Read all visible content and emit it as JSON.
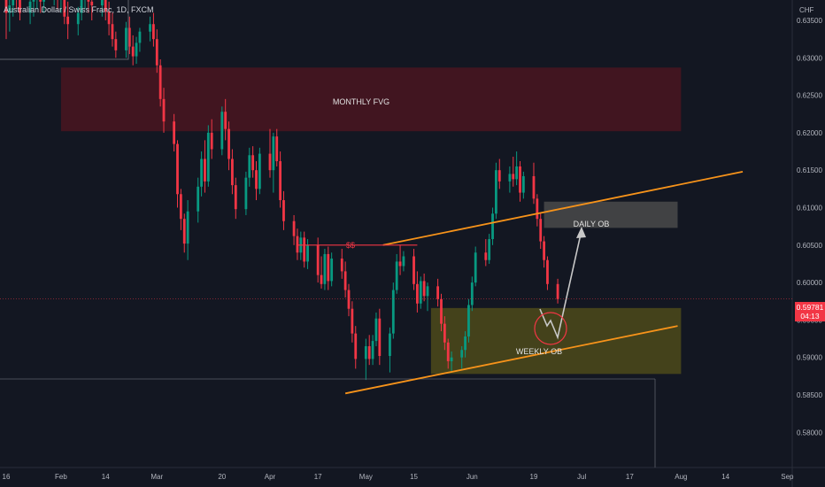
{
  "header": {
    "title": "Australian Dollar / Swiss Franc, 1D, FXCM"
  },
  "price_axis": {
    "currency": "CHF",
    "last_price": "0.59781",
    "countdown": "04:13"
  },
  "colors": {
    "background": "#131722",
    "up_candle": "#089981",
    "down_candle": "#f23645",
    "trendline": "#f7931a",
    "monthly_fvg_fill": "#4a1520",
    "weekly_ob_fill": "#4d4a1a",
    "daily_ob_fill": "#4a4a4a",
    "projection_arrow": "#c8c8c8"
  },
  "annotations": {
    "monthly_fvg": "MONTHLY FVG",
    "daily_ob": "DAILY OB",
    "weekly_ob": "WEEKLY OB",
    "liquidity": "$$"
  },
  "chart_data": {
    "type": "candlestick",
    "symbol": "Australian Dollar / Swiss Franc",
    "timeframe": "1D",
    "source": "FXCM",
    "currency": "CHF",
    "ylim": [
      0.5775,
      0.6375
    ],
    "y_ticks": [
      "0.63500",
      "0.63000",
      "0.62500",
      "0.62000",
      "0.61500",
      "0.61000",
      "0.60500",
      "0.60000",
      "0.59500",
      "0.59000",
      "0.58500",
      "0.58000"
    ],
    "y_tick_values": [
      0.635,
      0.63,
      0.625,
      0.62,
      0.615,
      0.61,
      0.605,
      0.6,
      0.595,
      0.59,
      0.585,
      0.58
    ],
    "x_ticks": [
      "16",
      "Feb",
      "14",
      "Mar",
      "20",
      "Apr",
      "17",
      "May",
      "15",
      "Jun",
      "19",
      "Jul",
      "17",
      "Aug",
      "14",
      "Sep"
    ],
    "x_tick_dates": [
      "2023-01-16",
      "2023-02-01",
      "2023-02-14",
      "2023-03-01",
      "2023-03-20",
      "2023-04-03",
      "2023-04-17",
      "2023-05-01",
      "2023-05-15",
      "2023-06-01",
      "2023-06-19",
      "2023-07-03",
      "2023-07-17",
      "2023-08-01",
      "2023-08-14",
      "2023-09-01"
    ],
    "last_price": 0.59781,
    "zones": [
      {
        "label": "MONTHLY FVG",
        "from_date": "2023-02-01",
        "to_date": "2023-08-01",
        "price_low": 0.6202,
        "price_high": 0.6287
      },
      {
        "label": "DAILY OB",
        "from_date": "2023-06-22",
        "to_date": "2023-07-31",
        "price_low": 0.6073,
        "price_high": 0.6108
      },
      {
        "label": "WEEKLY OB",
        "from_date": "2023-05-20",
        "to_date": "2023-08-01",
        "price_low": 0.5878,
        "price_high": 0.5966
      }
    ],
    "trendlines": [
      {
        "name": "upper channel",
        "from": [
          "2023-05-06",
          0.605
        ],
        "to": [
          "2023-08-19",
          0.6148
        ]
      },
      {
        "name": "lower channel",
        "from": [
          "2023-04-25",
          0.5852
        ],
        "to": [
          "2023-07-31",
          0.5942
        ]
      },
      {
        "name": "liquidity $$",
        "from": [
          "2023-04-11",
          0.605
        ],
        "to": [
          "2023-05-16",
          0.605
        ]
      }
    ],
    "candles": [
      [
        "2023-01-16",
        0.638,
        0.6395,
        0.6325,
        0.636
      ],
      [
        "2023-01-17",
        0.636,
        0.638,
        0.6335,
        0.637
      ],
      [
        "2023-01-18",
        0.637,
        0.6395,
        0.6355,
        0.6385
      ],
      [
        "2023-01-19",
        0.6385,
        0.64,
        0.6365,
        0.638
      ],
      [
        "2023-01-20",
        0.638,
        0.6395,
        0.635,
        0.636
      ],
      [
        "2023-01-23",
        0.636,
        0.638,
        0.6345,
        0.6375
      ],
      [
        "2023-01-24",
        0.6375,
        0.6392,
        0.6355,
        0.6385
      ],
      [
        "2023-01-25",
        0.6385,
        0.64,
        0.6365,
        0.639
      ],
      [
        "2023-01-26",
        0.639,
        0.64,
        0.636,
        0.6375
      ],
      [
        "2023-01-27",
        0.6375,
        0.6395,
        0.636,
        0.6388
      ],
      [
        "2023-01-30",
        0.6388,
        0.64,
        0.637,
        0.6395
      ],
      [
        "2023-01-31",
        0.6395,
        0.64,
        0.6365,
        0.638
      ],
      [
        "2023-02-01",
        0.638,
        0.6398,
        0.636,
        0.639
      ],
      [
        "2023-02-02",
        0.639,
        0.64,
        0.6345,
        0.6355
      ],
      [
        "2023-02-03",
        0.6355,
        0.6375,
        0.6325,
        0.6345
      ],
      [
        "2023-02-06",
        0.6345,
        0.6368,
        0.633,
        0.636
      ],
      [
        "2023-02-07",
        0.636,
        0.6388,
        0.635,
        0.6382
      ],
      [
        "2023-02-08",
        0.6382,
        0.64,
        0.6365,
        0.639
      ],
      [
        "2023-02-09",
        0.639,
        0.64,
        0.636,
        0.6375
      ],
      [
        "2023-02-10",
        0.6375,
        0.6395,
        0.635,
        0.637
      ],
      [
        "2023-02-13",
        0.637,
        0.6392,
        0.6355,
        0.6385
      ],
      [
        "2023-02-14",
        0.6385,
        0.64,
        0.635,
        0.6362
      ],
      [
        "2023-02-15",
        0.6362,
        0.6375,
        0.633,
        0.6345
      ],
      [
        "2023-02-16",
        0.6345,
        0.636,
        0.6315,
        0.6325
      ],
      [
        "2023-02-17",
        0.6325,
        0.6335,
        0.63,
        0.631
      ],
      [
        "2023-02-20",
        0.631,
        0.6348,
        0.63,
        0.634
      ],
      [
        "2023-02-21",
        0.634,
        0.6355,
        0.6305,
        0.6315
      ],
      [
        "2023-02-22",
        0.6315,
        0.633,
        0.629,
        0.6302
      ],
      [
        "2023-02-23",
        0.6302,
        0.6328,
        0.6292,
        0.632
      ],
      [
        "2023-02-24",
        0.632,
        0.634,
        0.6308,
        0.6335
      ],
      [
        "2023-02-27",
        0.6335,
        0.6355,
        0.6322,
        0.6345
      ],
      [
        "2023-02-28",
        0.6345,
        0.636,
        0.6315,
        0.6325
      ],
      [
        "2023-03-01",
        0.6325,
        0.6338,
        0.628,
        0.629
      ],
      [
        "2023-03-02",
        0.629,
        0.6298,
        0.6235,
        0.6245
      ],
      [
        "2023-03-03",
        0.6245,
        0.626,
        0.62,
        0.6215
      ],
      [
        "2023-03-06",
        0.6215,
        0.6225,
        0.6175,
        0.6185
      ],
      [
        "2023-03-07",
        0.6185,
        0.619,
        0.61,
        0.6118
      ],
      [
        "2023-03-08",
        0.6118,
        0.6125,
        0.607,
        0.6085
      ],
      [
        "2023-03-09",
        0.6085,
        0.6092,
        0.604,
        0.6052
      ],
      [
        "2023-03-10",
        0.6052,
        0.611,
        0.603,
        0.6095
      ],
      [
        "2023-03-13",
        0.6095,
        0.614,
        0.608,
        0.6128
      ],
      [
        "2023-03-14",
        0.6128,
        0.6175,
        0.6115,
        0.6165
      ],
      [
        "2023-03-15",
        0.6165,
        0.619,
        0.612,
        0.6135
      ],
      [
        "2023-03-16",
        0.6135,
        0.621,
        0.6128,
        0.62
      ],
      [
        "2023-03-17",
        0.62,
        0.6218,
        0.6165,
        0.6178
      ],
      [
        "2023-03-20",
        0.6178,
        0.6235,
        0.617,
        0.6228
      ],
      [
        "2023-03-21",
        0.6228,
        0.6245,
        0.619,
        0.6205
      ],
      [
        "2023-03-22",
        0.6205,
        0.6215,
        0.615,
        0.6165
      ],
      [
        "2023-03-23",
        0.6165,
        0.6178,
        0.6118,
        0.613
      ],
      [
        "2023-03-24",
        0.613,
        0.614,
        0.6085,
        0.6098
      ],
      [
        "2023-03-27",
        0.6098,
        0.6148,
        0.609,
        0.614
      ],
      [
        "2023-03-28",
        0.614,
        0.618,
        0.6128,
        0.617
      ],
      [
        "2023-03-29",
        0.617,
        0.6182,
        0.614,
        0.615
      ],
      [
        "2023-03-30",
        0.615,
        0.6162,
        0.611,
        0.6125
      ],
      [
        "2023-03-31",
        0.6125,
        0.618,
        0.6118,
        0.6172
      ],
      [
        "2023-04-03",
        0.6172,
        0.6205,
        0.614,
        0.615
      ],
      [
        "2023-04-04",
        0.615,
        0.62,
        0.612,
        0.6195
      ],
      [
        "2023-04-05",
        0.6195,
        0.6205,
        0.6155,
        0.6162
      ],
      [
        "2023-04-06",
        0.6162,
        0.6175,
        0.61,
        0.611
      ],
      [
        "2023-04-07",
        0.611,
        0.6122,
        0.607,
        0.6082
      ],
      [
        "2023-04-10",
        0.6082,
        0.609,
        0.605,
        0.6062
      ],
      [
        "2023-04-11",
        0.6062,
        0.6072,
        0.603,
        0.604
      ],
      [
        "2023-04-12",
        0.604,
        0.6068,
        0.603,
        0.606
      ],
      [
        "2023-04-13",
        0.606,
        0.6068,
        0.602,
        0.6028
      ],
      [
        "2023-04-14",
        0.6028,
        0.6058,
        0.6018,
        0.605
      ],
      [
        "2023-04-17",
        0.605,
        0.606,
        0.6,
        0.601
      ],
      [
        "2023-04-18",
        0.601,
        0.6035,
        0.5992,
        0.5998
      ],
      [
        "2023-04-19",
        0.5998,
        0.6045,
        0.599,
        0.6038
      ],
      [
        "2023-04-20",
        0.6038,
        0.6048,
        0.599,
        0.6002
      ],
      [
        "2023-04-21",
        0.6002,
        0.604,
        0.5995,
        0.6032
      ],
      [
        "2023-04-24",
        0.6032,
        0.6045,
        0.6005,
        0.6015
      ],
      [
        "2023-04-25",
        0.6015,
        0.6028,
        0.598,
        0.599
      ],
      [
        "2023-04-26",
        0.599,
        0.5998,
        0.5955,
        0.5965
      ],
      [
        "2023-04-27",
        0.5965,
        0.5975,
        0.592,
        0.5932
      ],
      [
        "2023-04-28",
        0.5932,
        0.5942,
        0.5885,
        0.5898
      ],
      [
        "2023-05-01",
        0.5898,
        0.5925,
        0.587,
        0.5915
      ],
      [
        "2023-05-02",
        0.5915,
        0.593,
        0.589,
        0.5898
      ],
      [
        "2023-05-03",
        0.5898,
        0.593,
        0.589,
        0.5922
      ],
      [
        "2023-05-04",
        0.5922,
        0.596,
        0.5915,
        0.5952
      ],
      [
        "2023-05-05",
        0.5952,
        0.5965,
        0.589,
        0.5902
      ],
      [
        "2023-05-08",
        0.5902,
        0.594,
        0.588,
        0.5932
      ],
      [
        "2023-05-09",
        0.5932,
        0.6,
        0.5925,
        0.599
      ],
      [
        "2023-05-10",
        0.599,
        0.6038,
        0.5985,
        0.6028
      ],
      [
        "2023-05-11",
        0.6028,
        0.605,
        0.601,
        0.6022
      ],
      [
        "2023-05-12",
        0.6022,
        0.6042,
        0.6015,
        0.6035
      ],
      [
        "2023-05-15",
        0.6035,
        0.6045,
        0.599,
        0.5998
      ],
      [
        "2023-05-16",
        0.5998,
        0.6015,
        0.596,
        0.5972
      ],
      [
        "2023-05-17",
        0.5972,
        0.6008,
        0.5965,
        0.6002
      ],
      [
        "2023-05-18",
        0.6002,
        0.6012,
        0.5975,
        0.5982
      ],
      [
        "2023-05-19",
        0.5982,
        0.6,
        0.5962,
        0.5995
      ],
      [
        "2023-05-22",
        0.5995,
        0.6005,
        0.5968,
        0.5978
      ],
      [
        "2023-05-23",
        0.5978,
        0.5985,
        0.5935,
        0.5945
      ],
      [
        "2023-05-24",
        0.5945,
        0.5955,
        0.591,
        0.592
      ],
      [
        "2023-05-25",
        0.592,
        0.5925,
        0.5885,
        0.5895
      ],
      [
        "2023-05-26",
        0.5895,
        0.5908,
        0.5882,
        0.59
      ],
      [
        "2023-05-29",
        0.59,
        0.5915,
        0.5885,
        0.591
      ],
      [
        "2023-05-30",
        0.591,
        0.5935,
        0.59,
        0.5928
      ],
      [
        "2023-05-31",
        0.5928,
        0.5978,
        0.592,
        0.597
      ],
      [
        "2023-06-01",
        0.597,
        0.6008,
        0.5962,
        0.6
      ],
      [
        "2023-06-02",
        0.6,
        0.6048,
        0.5995,
        0.604
      ],
      [
        "2023-06-05",
        0.604,
        0.6058,
        0.6022,
        0.603
      ],
      [
        "2023-06-06",
        0.603,
        0.6065,
        0.6025,
        0.6058
      ],
      [
        "2023-06-07",
        0.6058,
        0.61,
        0.605,
        0.6092
      ],
      [
        "2023-06-08",
        0.6092,
        0.616,
        0.6085,
        0.615
      ],
      [
        "2023-06-09",
        0.615,
        0.6165,
        0.6125,
        0.6135
      ],
      [
        "2023-06-12",
        0.6135,
        0.6155,
        0.612,
        0.6145
      ],
      [
        "2023-06-13",
        0.6145,
        0.6168,
        0.6128,
        0.6138
      ],
      [
        "2023-06-14",
        0.6138,
        0.6175,
        0.613,
        0.6155
      ],
      [
        "2023-06-15",
        0.6155,
        0.6162,
        0.6108,
        0.612
      ],
      [
        "2023-06-16",
        0.612,
        0.6148,
        0.6112,
        0.6142
      ],
      [
        "2023-06-19",
        0.6142,
        0.616,
        0.6105,
        0.6112
      ],
      [
        "2023-06-20",
        0.6112,
        0.6118,
        0.6075,
        0.6085
      ],
      [
        "2023-06-21",
        0.6085,
        0.6092,
        0.6045,
        0.6055
      ],
      [
        "2023-06-22",
        0.6055,
        0.6062,
        0.602,
        0.603
      ],
      [
        "2023-06-23",
        0.603,
        0.6035,
        0.599,
        0.5998
      ],
      [
        "2023-06-26",
        0.5998,
        0.6005,
        0.5972,
        0.5978
      ]
    ]
  }
}
